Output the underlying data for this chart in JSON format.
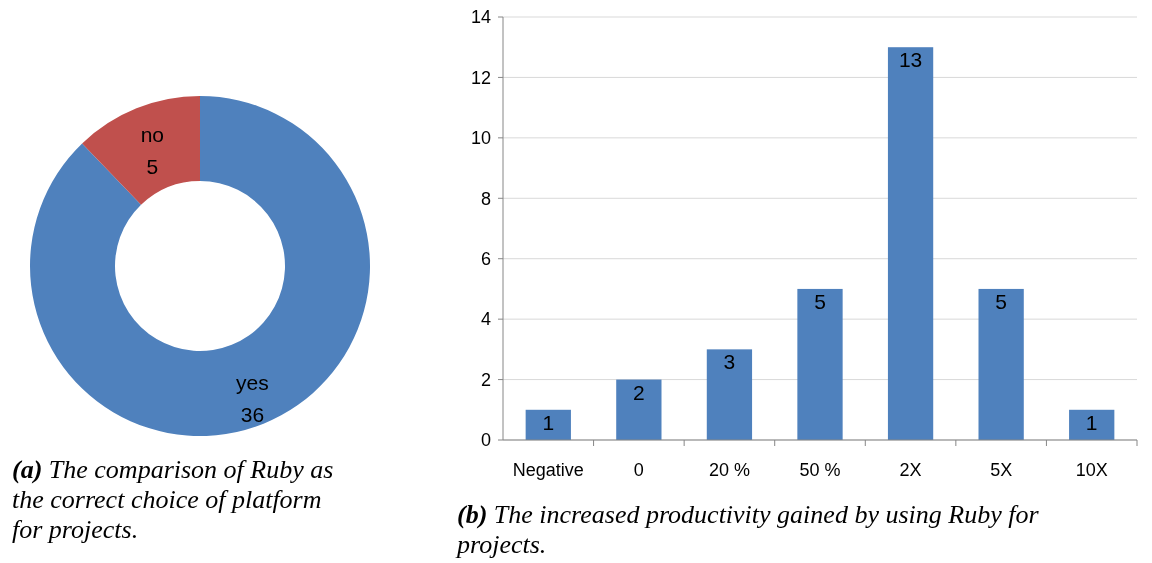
{
  "chart_data": [
    {
      "type": "donut",
      "categories": [
        "yes",
        "no"
      ],
      "values": [
        36,
        5
      ],
      "colors": [
        "#4f81bd",
        "#c0504d"
      ],
      "data_labels": true,
      "annotations": [
        "(a) The comparison of Ruby as the correct choice of platform for projects."
      ]
    },
    {
      "type": "bar",
      "categories": [
        "Negative",
        "0",
        "20 %",
        "50 %",
        "2X",
        "5X",
        "10X"
      ],
      "values": [
        1,
        2,
        3,
        5,
        13,
        5,
        1
      ],
      "color": "#4f81bd",
      "ylim": [
        0,
        14
      ],
      "yticks": [
        0,
        2,
        4,
        6,
        8,
        10,
        12,
        14
      ],
      "grid": "y",
      "data_labels": true,
      "annotations": [
        "(b) The increased productivity gained by using Ruby for projects."
      ]
    }
  ]
}
